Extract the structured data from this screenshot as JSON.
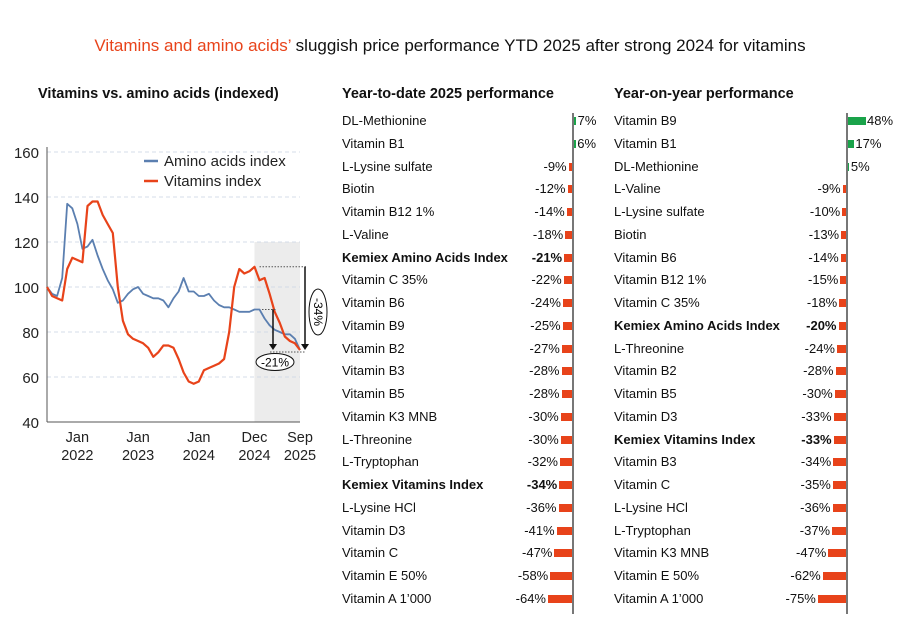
{
  "title": {
    "highlight": "Vitamins and amino acids’",
    "rest": " sluggish price performance YTD 2025 after strong 2024 for vitamins"
  },
  "colors": {
    "accent": "#e8431a",
    "amino": "#5b7fb0",
    "vitamins": "#e8431a",
    "positive": "#1aa34a",
    "negative": "#e8431a",
    "shade": "#ececec"
  },
  "chart_data": [
    {
      "type": "line",
      "title": "Vitamins vs. amino acids (indexed)",
      "x_start": "2021-07",
      "x_end": "2025-09",
      "x_step": "month",
      "x_ticks": [
        {
          "label": [
            "Jan",
            "2022"
          ],
          "month": "2022-01"
        },
        {
          "label": [
            "Jan",
            "2023"
          ],
          "month": "2023-01"
        },
        {
          "label": [
            "Jan",
            "2024"
          ],
          "month": "2024-01"
        },
        {
          "label": [
            "Dec",
            "2024"
          ],
          "month": "2024-12"
        },
        {
          "label": [
            "Sep",
            "2025"
          ],
          "month": "2025-09"
        }
      ],
      "ylim": [
        40,
        160
      ],
      "y_ticks": [
        40,
        60,
        80,
        100,
        120,
        140,
        160
      ],
      "grid": true,
      "legend": "top-right",
      "shaded_range": {
        "from": "2024-12",
        "to": "2025-09",
        "ymax": 120
      },
      "series": [
        {
          "name": "Amino acids index",
          "values": [
            100,
            97,
            96,
            104,
            137,
            135,
            128,
            117,
            118,
            121,
            114,
            108,
            103,
            99,
            93,
            94,
            97,
            99,
            100,
            97,
            96,
            95,
            95,
            94,
            91,
            95,
            98,
            104,
            98,
            98,
            96,
            96,
            97,
            94,
            92,
            91,
            91,
            90,
            89,
            89,
            89,
            90,
            90,
            86,
            83,
            81,
            80,
            79,
            79,
            77,
            72
          ]
        },
        {
          "name": "Vitamins index",
          "values": [
            100,
            96,
            95,
            94,
            108,
            113,
            112,
            111,
            136,
            138,
            138,
            132,
            128,
            124,
            100,
            85,
            79,
            77,
            76,
            75,
            73,
            69,
            71,
            74,
            74,
            73,
            68,
            62,
            58,
            57,
            58,
            63,
            64,
            65,
            66,
            68,
            80,
            100,
            108,
            106,
            107,
            109,
            103,
            104,
            97,
            89,
            84,
            78,
            76,
            75,
            72
          ]
        }
      ],
      "annotations": [
        {
          "label": "-34%",
          "from_value": 109,
          "to_value": 72
        },
        {
          "label": "-21%",
          "from_value": 90,
          "to_value": 72
        }
      ]
    },
    {
      "type": "bar",
      "title": "Year-to-date 2025 performance",
      "categories": [
        "DL-Methionine",
        "Vitamin B1",
        "L-Lysine sulfate",
        "Biotin",
        "Vitamin B12 1%",
        "L-Valine",
        "Kemiex Amino Acids Index",
        "Vitamin C 35%",
        "Vitamin B6",
        "Vitamin B9",
        "Vitamin B2",
        "Vitamin B3",
        "Vitamin B5",
        "Vitamin K3 MNB",
        "L-Threonine",
        "L-Tryptophan",
        "Kemiex Vitamins Index",
        "L-Lysine HCl",
        "Vitamin D3",
        "Vitamin C",
        "Vitamin E 50%",
        "Vitamin A 1’000"
      ],
      "values": [
        7,
        6,
        -9,
        -12,
        -14,
        -18,
        -21,
        -22,
        -24,
        -25,
        -27,
        -28,
        -28,
        -30,
        -30,
        -32,
        -34,
        -36,
        -41,
        -47,
        -58,
        -64
      ],
      "labels": [
        "7%",
        "6%",
        "-9%",
        "-12%",
        "-14%",
        "-18%",
        "-21%",
        "-22%",
        "-24%",
        "-25%",
        "-27%",
        "-28%",
        "-28%",
        "-30%",
        "-30%",
        "-32%",
        "-34%",
        "-36%",
        "-41%",
        "-47%",
        "-58%",
        "-64%"
      ],
      "bold": [
        "Kemiex Amino Acids Index",
        "Kemiex Vitamins Index"
      ]
    },
    {
      "type": "bar",
      "title": "Year-on-year performance",
      "categories": [
        "Vitamin B9",
        "Vitamin B1",
        "DL-Methionine",
        "L-Valine",
        "L-Lysine sulfate",
        "Biotin",
        "Vitamin B6",
        "Vitamin B12 1%",
        "Vitamin C 35%",
        "Kemiex Amino Acids Index",
        "L-Threonine",
        "Vitamin B2",
        "Vitamin B5",
        "Vitamin D3",
        "Kemiex Vitamins Index",
        "Vitamin B3",
        "Vitamin C",
        "L-Lysine HCl",
        "L-Tryptophan",
        "Vitamin K3 MNB",
        "Vitamin E 50%",
        "Vitamin A 1’000"
      ],
      "values": [
        48,
        17,
        5,
        -9,
        -10,
        -13,
        -14,
        -15,
        -18,
        -20,
        -24,
        -28,
        -30,
        -33,
        -33,
        -34,
        -35,
        -36,
        -37,
        -47,
        -62,
        -75
      ],
      "labels": [
        "48%",
        "17%",
        "5%",
        "-9%",
        "-10%",
        "-13%",
        "-14%",
        "-15%",
        "-18%",
        "-20%",
        "-24%",
        "-28%",
        "-30%",
        "-33%",
        "-33%",
        "-34%",
        "-35%",
        "-36%",
        "-37%",
        "-47%",
        "-62%",
        "-75%"
      ],
      "bold": [
        "Kemiex Amino Acids Index",
        "Kemiex Vitamins Index"
      ]
    }
  ]
}
